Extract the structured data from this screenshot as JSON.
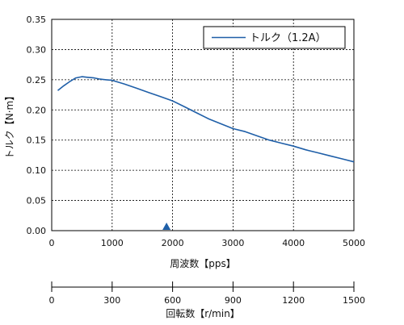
{
  "chart_data": {
    "type": "line",
    "title": "",
    "xlabel": "周波数【pps】",
    "ylabel": "トルク【N·m】",
    "xlim": [
      0,
      5000
    ],
    "ylim": [
      0,
      0.35
    ],
    "x_ticks": [
      "0",
      "1000",
      "2000",
      "3000",
      "4000",
      "5000"
    ],
    "y_ticks": [
      "0.00",
      "0.05",
      "0.10",
      "0.15",
      "0.20",
      "0.25",
      "0.30",
      "0.35"
    ],
    "grid": true,
    "legend_position": "top-right",
    "series": [
      {
        "name": "トルク（1.2A）",
        "color": "#1f5fa8",
        "x": [
          100,
          200,
          300,
          400,
          500,
          600,
          700,
          800,
          900,
          1000,
          1200,
          1400,
          1600,
          1800,
          2000,
          2200,
          2400,
          2600,
          2800,
          3000,
          3200,
          3400,
          3600,
          3800,
          4000,
          4200,
          4400,
          4600,
          4800,
          5000
        ],
        "y": [
          0.232,
          0.24,
          0.247,
          0.253,
          0.255,
          0.254,
          0.253,
          0.251,
          0.25,
          0.249,
          0.243,
          0.236,
          0.229,
          0.222,
          0.215,
          0.205,
          0.195,
          0.185,
          0.177,
          0.169,
          0.164,
          0.157,
          0.15,
          0.145,
          0.14,
          0.134,
          0.129,
          0.124,
          0.119,
          0.114
        ]
      }
    ],
    "marker": {
      "x": 1900,
      "shape": "triangle",
      "color": "#1f5fa8"
    },
    "secondary_axis": {
      "label": "回転数【r/min】",
      "xlim": [
        0,
        1500
      ],
      "ticks": [
        "0",
        "300",
        "600",
        "900",
        "1200",
        "1500"
      ]
    }
  }
}
